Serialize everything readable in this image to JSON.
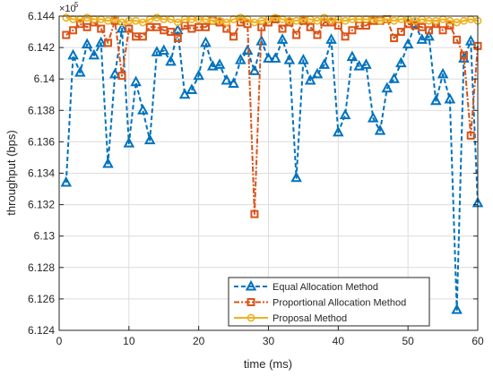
{
  "chart_data": {
    "type": "line",
    "xlabel": "time (ms)",
    "ylabel": "throughput (bps)",
    "y_exponent_label": "×10",
    "y_exponent": "5",
    "xlim": [
      0,
      60
    ],
    "ylim": [
      6.124,
      6.144
    ],
    "x_ticks": [
      "0",
      "10",
      "20",
      "30",
      "40",
      "50",
      "60"
    ],
    "y_ticks": [
      "6.124",
      "6.126",
      "6.128",
      "6.13",
      "6.132",
      "6.134",
      "6.136",
      "6.138",
      "6.14",
      "6.142",
      "6.144"
    ],
    "grid": true,
    "legend_position": "bottom-right",
    "x": [
      1,
      2,
      3,
      4,
      5,
      6,
      7,
      8,
      9,
      10,
      11,
      12,
      13,
      14,
      15,
      16,
      17,
      18,
      19,
      20,
      21,
      22,
      23,
      24,
      25,
      26,
      27,
      28,
      29,
      30,
      31,
      32,
      33,
      34,
      35,
      36,
      37,
      38,
      39,
      40,
      41,
      42,
      43,
      44,
      45,
      46,
      47,
      48,
      49,
      50,
      51,
      52,
      53,
      54,
      55,
      56,
      57,
      58,
      59,
      60
    ],
    "series": [
      {
        "name": "Equal Allocation Method",
        "color": "#0072BD",
        "line_style": "dashed",
        "marker": "triangle",
        "values": [
          6.1334,
          6.1415,
          6.1404,
          6.1422,
          6.1415,
          6.1423,
          6.1346,
          6.1403,
          6.1432,
          6.1359,
          6.1398,
          6.138,
          6.1361,
          6.1417,
          6.1418,
          6.1411,
          6.1431,
          6.139,
          6.1393,
          6.1402,
          6.1423,
          6.1408,
          6.1409,
          6.1399,
          6.1397,
          6.1412,
          6.1418,
          6.1405,
          6.1424,
          6.1413,
          6.1413,
          6.1425,
          6.1412,
          6.1337,
          6.1412,
          6.1399,
          6.1403,
          6.1409,
          6.1425,
          6.1366,
          6.1377,
          6.1414,
          6.1408,
          6.1409,
          6.1375,
          6.1367,
          6.1394,
          6.14,
          6.141,
          6.1422,
          6.1435,
          6.1425,
          6.1427,
          6.1386,
          6.1403,
          6.1387,
          6.1253,
          6.1413,
          6.1424,
          6.1321
        ]
      },
      {
        "name": "Proportional Allocation Method",
        "color": "#D95319",
        "line_style": "dash-dot",
        "marker": "square",
        "values": [
          6.1428,
          6.1431,
          6.1435,
          6.1433,
          6.1436,
          6.1432,
          6.1423,
          6.1437,
          6.1402,
          6.1432,
          6.1427,
          6.1427,
          6.1433,
          6.1433,
          6.1431,
          6.143,
          6.1426,
          6.1434,
          6.1432,
          6.1433,
          6.1433,
          6.1437,
          6.1436,
          6.1432,
          6.1427,
          6.1436,
          6.1435,
          6.1314,
          6.1433,
          6.1436,
          6.1438,
          6.1432,
          6.1436,
          6.1428,
          6.1437,
          6.1433,
          6.1428,
          6.1436,
          6.1436,
          6.1434,
          6.1427,
          6.1431,
          6.1434,
          6.1434,
          6.1437,
          6.1437,
          6.1438,
          6.1426,
          6.143,
          6.1435,
          6.1434,
          6.1433,
          6.1431,
          6.1435,
          6.1431,
          6.1434,
          6.1425,
          6.1415,
          6.1364,
          6.1421
        ]
      },
      {
        "name": "Proposal Method",
        "color": "#EDB120",
        "line_style": "solid",
        "marker": "circle",
        "values": [
          6.1439,
          6.1438,
          6.1438,
          6.1439,
          6.1438,
          6.1438,
          6.1437,
          6.1438,
          6.1436,
          6.1437,
          6.1437,
          6.1436,
          6.1438,
          6.1439,
          6.1438,
          6.1438,
          6.1436,
          6.1438,
          6.1438,
          6.1438,
          6.1438,
          6.1437,
          6.1437,
          6.1436,
          6.1438,
          6.1439,
          6.1438,
          6.1436,
          6.1437,
          6.1438,
          6.1439,
          6.1438,
          6.1437,
          6.1437,
          6.1438,
          6.1438,
          6.1437,
          6.1439,
          6.1437,
          6.1438,
          6.1437,
          6.1438,
          6.1438,
          6.1438,
          6.1438,
          6.1437,
          6.1438,
          6.1437,
          6.1438,
          6.1438,
          6.1437,
          6.1438,
          6.1437,
          6.1437,
          6.1438,
          6.1437,
          6.1436,
          6.1437,
          6.1438,
          6.1437
        ]
      }
    ]
  }
}
